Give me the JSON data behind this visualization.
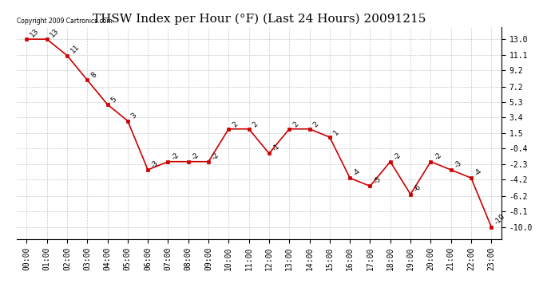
{
  "title": "THSW Index per Hour (°F) (Last 24 Hours) 20091215",
  "hours": [
    "00:00",
    "01:00",
    "02:00",
    "03:00",
    "04:00",
    "05:00",
    "06:00",
    "07:00",
    "08:00",
    "09:00",
    "10:00",
    "11:00",
    "12:00",
    "13:00",
    "14:00",
    "15:00",
    "16:00",
    "17:00",
    "18:00",
    "19:00",
    "20:00",
    "21:00",
    "22:00",
    "23:00"
  ],
  "values": [
    13,
    13,
    11,
    8,
    5,
    3,
    -3,
    -2,
    -2,
    -2,
    2,
    2,
    -1,
    2,
    2,
    1,
    -4,
    -5,
    -2,
    -6,
    -2,
    -3,
    -4,
    -10
  ],
  "line_color": "#cc0000",
  "marker_color": "#cc0000",
  "bg_color": "#ffffff",
  "grid_color": "#bbbbbb",
  "yticks": [
    13.0,
    11.1,
    9.2,
    7.2,
    5.3,
    3.4,
    1.5,
    -0.4,
    -2.3,
    -4.2,
    -6.2,
    -8.1,
    -10.0
  ],
  "ylim": [
    -11.5,
    14.5
  ],
  "copyright_text": "Copyright 2009 Cartronics.com",
  "title_fontsize": 11,
  "tick_fontsize": 7,
  "annot_fontsize": 6.5
}
